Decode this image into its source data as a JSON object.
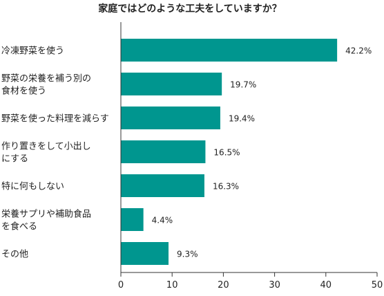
{
  "chart_data": {
    "type": "bar",
    "orientation": "horizontal",
    "title": "家庭ではどのような工夫をしていますか？",
    "categories": [
      [
        "冷凍野菜を使う"
      ],
      [
        "野菜の栄養を補う別の",
        "食材を使う"
      ],
      [
        "野菜を使った料理を減らす"
      ],
      [
        "作り置きをして小出し",
        "にする"
      ],
      [
        "特に何もしない"
      ],
      [
        "栄養サプリや補助食品",
        "を食べる"
      ],
      [
        "その他"
      ]
    ],
    "values": [
      42.2,
      19.7,
      19.4,
      16.5,
      16.3,
      4.4,
      9.3
    ],
    "value_labels": [
      "42.2%",
      "19.7%",
      "19.4%",
      "16.5%",
      "16.3%",
      "4.4%",
      "9.3%"
    ],
    "xlim": [
      0,
      50
    ],
    "xticks": [
      0,
      10,
      20,
      30,
      40,
      50
    ],
    "xlabel": "",
    "ylabel": "",
    "grid": false,
    "legend": "none",
    "bar_color": "#00968f"
  }
}
